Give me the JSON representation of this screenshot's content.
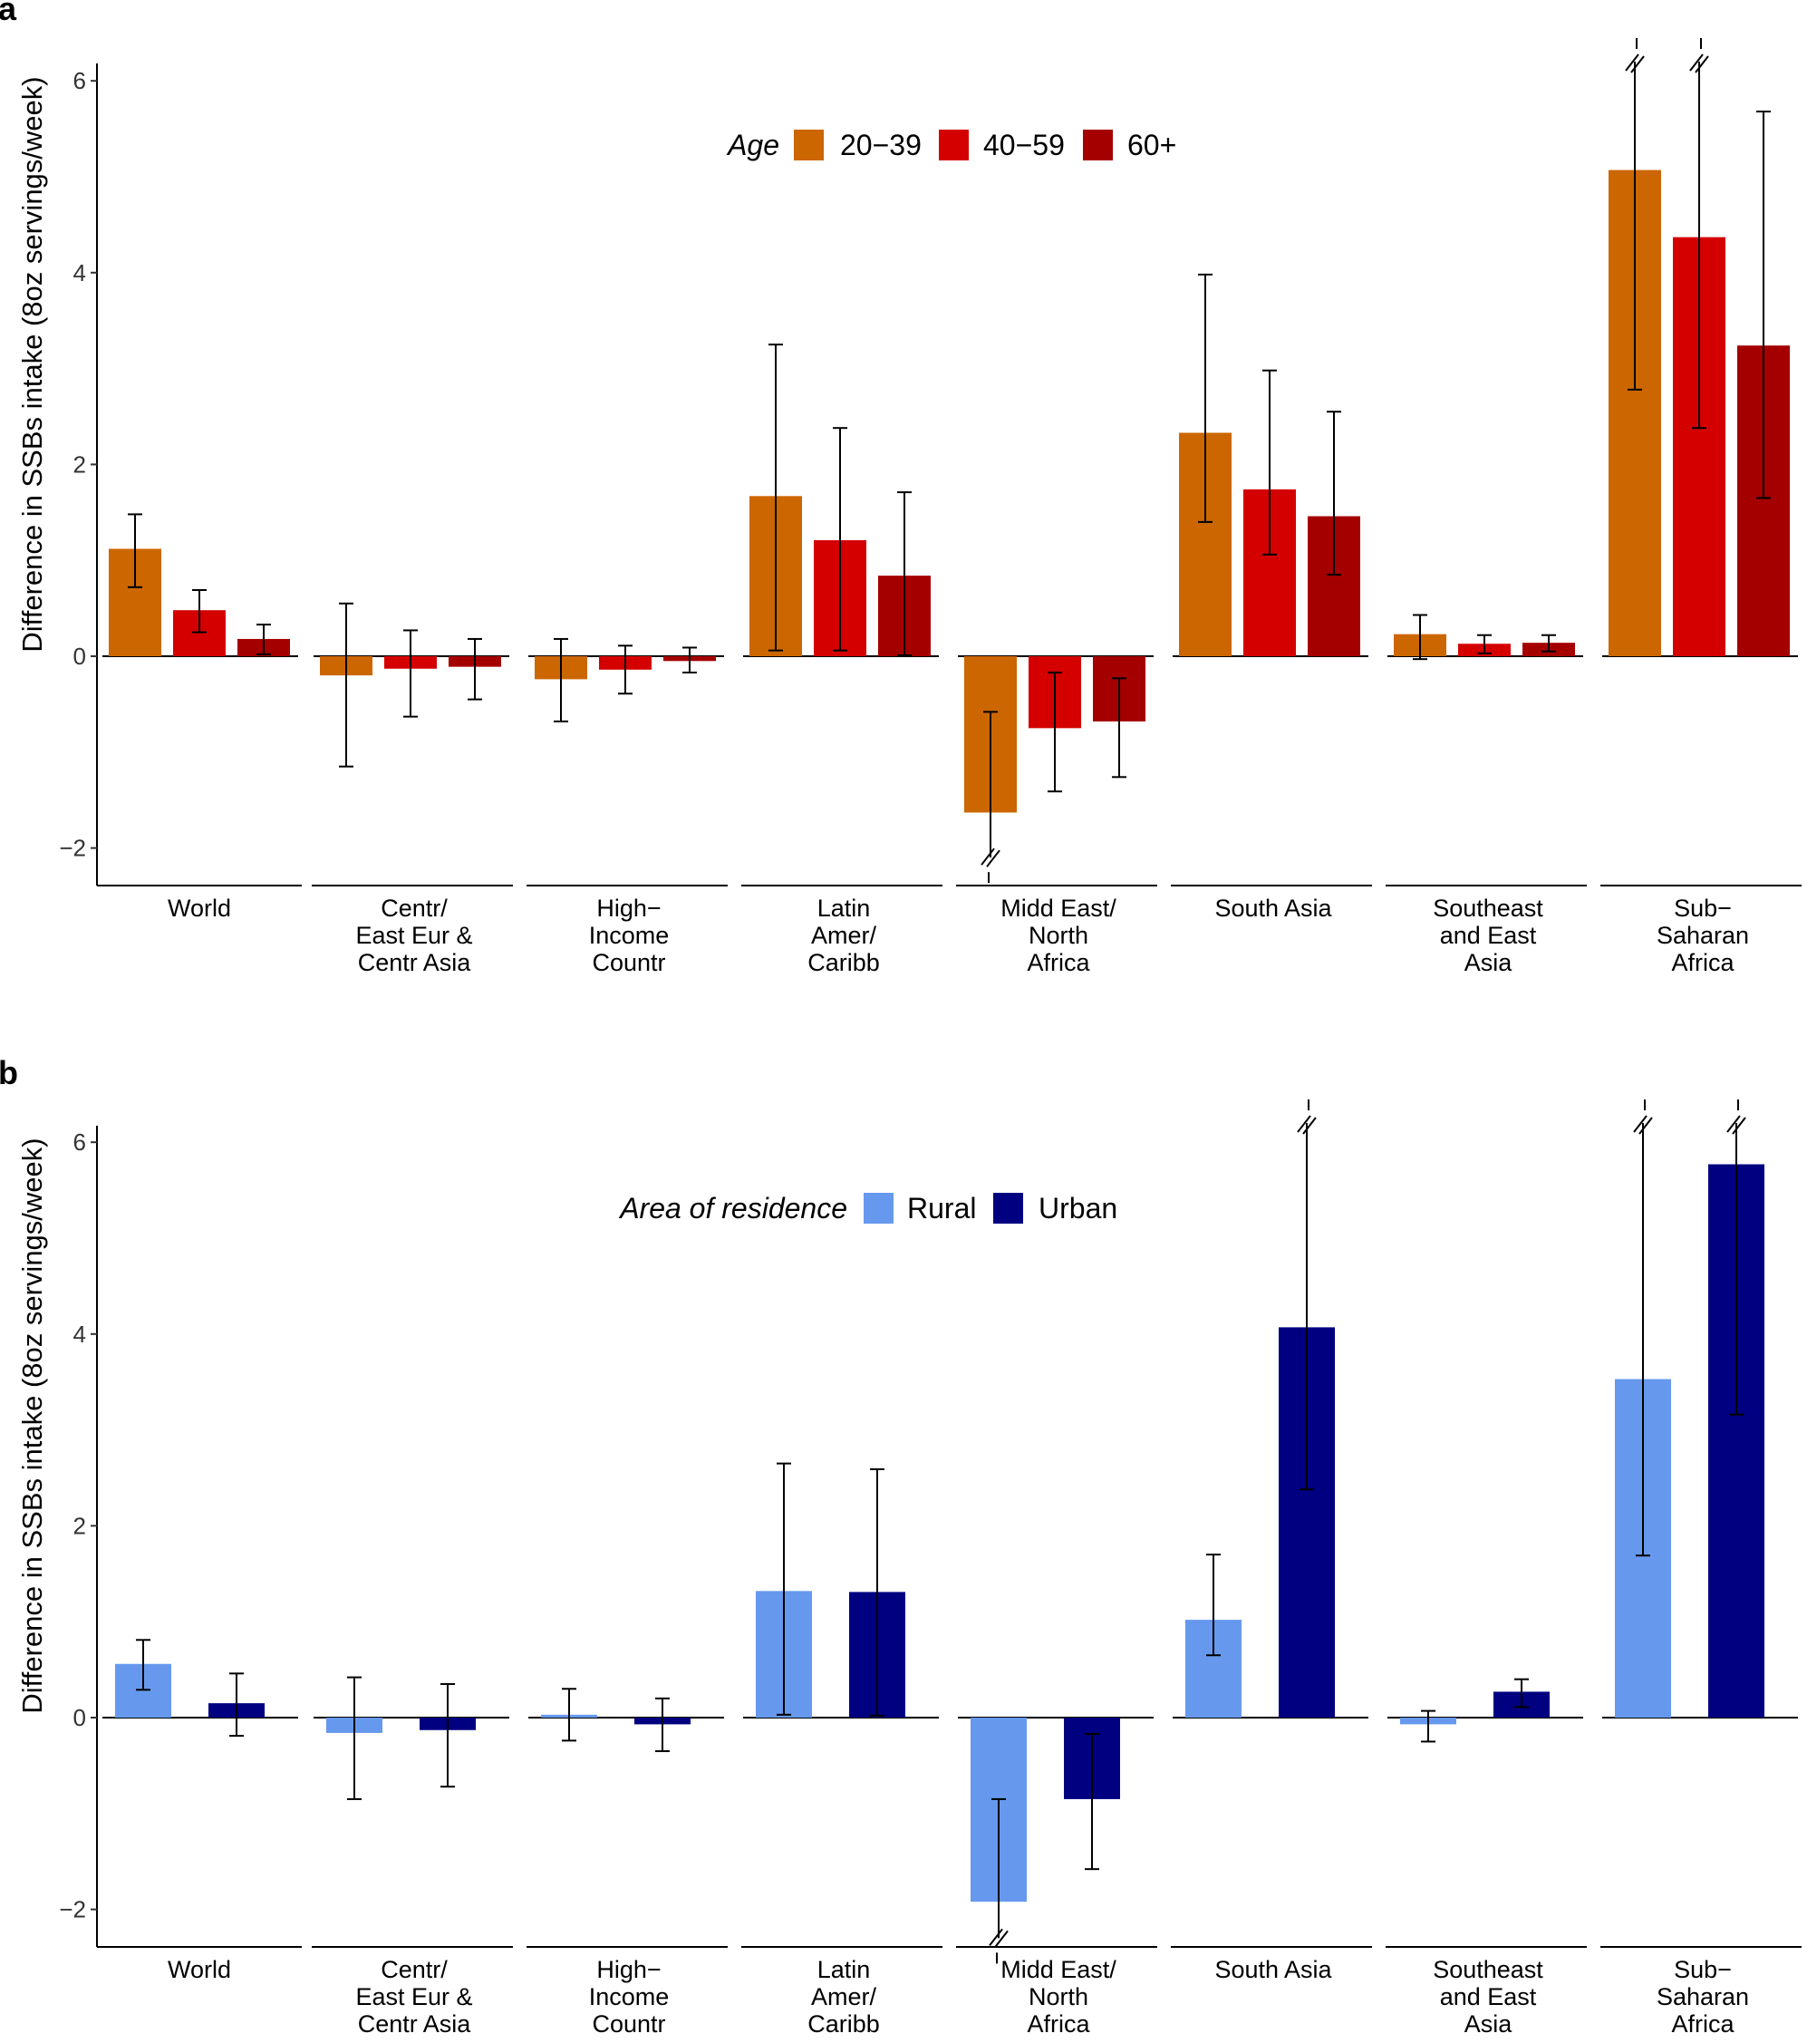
{
  "chart_data": [
    {
      "panel": "a",
      "type": "bar",
      "ylabel": "Difference in SSBs intake (8oz servings/week)",
      "xlabel": "",
      "ylim": [
        -2.4,
        6.2
      ],
      "yticks": [
        -2,
        0,
        2,
        4,
        6
      ],
      "ytick_labels": [
        "−2",
        "0",
        "2",
        "4",
        "6"
      ],
      "categories": [
        [
          "World"
        ],
        [
          "Centr/",
          "East Eur &",
          "Centr Asia"
        ],
        [
          "High−",
          "Income",
          "Countr"
        ],
        [
          "Latin",
          "Amer/",
          "Caribb"
        ],
        [
          "Midd East/",
          "North",
          "Africa"
        ],
        [
          "South Asia"
        ],
        [
          "Southeast",
          "and East",
          "Asia"
        ],
        [
          "Sub−",
          "Saharan",
          "Africa"
        ]
      ],
      "legend": {
        "title": "Age",
        "position": "top-center"
      },
      "series": [
        {
          "name": "20−39",
          "color": "#CC6600",
          "values": [
            1.12,
            -0.2,
            -0.24,
            1.67,
            -1.63,
            2.33,
            0.23,
            5.07
          ],
          "lower": [
            0.72,
            -1.15,
            -0.68,
            0.06,
            -2.1,
            1.4,
            -0.03,
            2.78
          ],
          "upper": [
            1.48,
            0.55,
            0.18,
            3.25,
            -0.58,
            3.98,
            0.43,
            6.2
          ],
          "upper_truncated": [
            false,
            false,
            false,
            false,
            false,
            false,
            false,
            true
          ],
          "lower_truncated": [
            false,
            false,
            false,
            false,
            true,
            false,
            false,
            false
          ]
        },
        {
          "name": "40−59",
          "color": "#D40000",
          "values": [
            0.48,
            -0.13,
            -0.14,
            1.21,
            -0.75,
            1.74,
            0.13,
            4.37
          ],
          "lower": [
            0.25,
            -0.63,
            -0.39,
            0.06,
            -1.41,
            1.06,
            0.03,
            2.38
          ],
          "upper": [
            0.69,
            0.27,
            0.11,
            2.38,
            -0.17,
            2.98,
            0.22,
            6.2
          ],
          "upper_truncated": [
            false,
            false,
            false,
            false,
            false,
            false,
            false,
            true
          ],
          "lower_truncated": [
            false,
            false,
            false,
            false,
            false,
            false,
            false,
            false
          ]
        },
        {
          "name": "60+",
          "color": "#A50000",
          "values": [
            0.18,
            -0.11,
            -0.05,
            0.84,
            -0.68,
            1.46,
            0.14,
            3.24
          ],
          "lower": [
            0.02,
            -0.45,
            -0.17,
            0.01,
            -1.26,
            0.85,
            0.05,
            1.65
          ],
          "upper": [
            0.33,
            0.18,
            0.09,
            1.71,
            -0.23,
            2.55,
            0.22,
            5.68
          ],
          "upper_truncated": [
            false,
            false,
            false,
            false,
            false,
            false,
            false,
            false
          ],
          "lower_truncated": [
            false,
            false,
            false,
            false,
            false,
            false,
            false,
            false
          ]
        }
      ]
    },
    {
      "panel": "b",
      "type": "bar",
      "ylabel": "Difference in SSBs intake (8oz servings/week)",
      "xlabel": "",
      "ylim": [
        -2.4,
        6.2
      ],
      "yticks": [
        -2,
        0,
        2,
        4,
        6
      ],
      "ytick_labels": [
        "−2",
        "0",
        "2",
        "4",
        "6"
      ],
      "categories": [
        [
          "World"
        ],
        [
          "Centr/",
          "East Eur &",
          "Centr Asia"
        ],
        [
          "High−",
          "Income",
          "Countr"
        ],
        [
          "Latin",
          "Amer/",
          "Caribb"
        ],
        [
          "Midd East/",
          "North",
          "Africa"
        ],
        [
          "South Asia"
        ],
        [
          "Southeast",
          "and East",
          "Asia"
        ],
        [
          "Sub−",
          "Saharan",
          "Africa"
        ]
      ],
      "legend": {
        "title": "Area of residence",
        "position": "top-center"
      },
      "series": [
        {
          "name": "Rural",
          "color": "#6699EE",
          "values": [
            0.56,
            -0.16,
            0.03,
            1.32,
            -1.92,
            1.02,
            -0.07,
            3.53
          ],
          "lower": [
            0.29,
            -0.85,
            -0.24,
            0.03,
            -2.3,
            0.65,
            -0.25,
            1.69
          ],
          "upper": [
            0.81,
            0.42,
            0.3,
            2.65,
            -0.85,
            1.7,
            0.07,
            6.2
          ],
          "upper_truncated": [
            false,
            false,
            false,
            false,
            false,
            false,
            false,
            true
          ],
          "lower_truncated": [
            false,
            false,
            false,
            false,
            true,
            false,
            false,
            false
          ]
        },
        {
          "name": "Urban",
          "color": "#000080",
          "values": [
            0.15,
            -0.13,
            -0.07,
            1.31,
            -0.85,
            4.07,
            0.27,
            5.77
          ],
          "lower": [
            -0.19,
            -0.72,
            -0.35,
            0.02,
            -1.58,
            2.38,
            0.11,
            3.16
          ],
          "upper": [
            0.46,
            0.35,
            0.2,
            2.59,
            -0.17,
            6.2,
            0.4,
            6.2
          ],
          "upper_truncated": [
            false,
            false,
            false,
            false,
            false,
            true,
            false,
            true
          ],
          "lower_truncated": [
            false,
            false,
            false,
            false,
            false,
            false,
            false,
            false
          ]
        }
      ]
    }
  ]
}
